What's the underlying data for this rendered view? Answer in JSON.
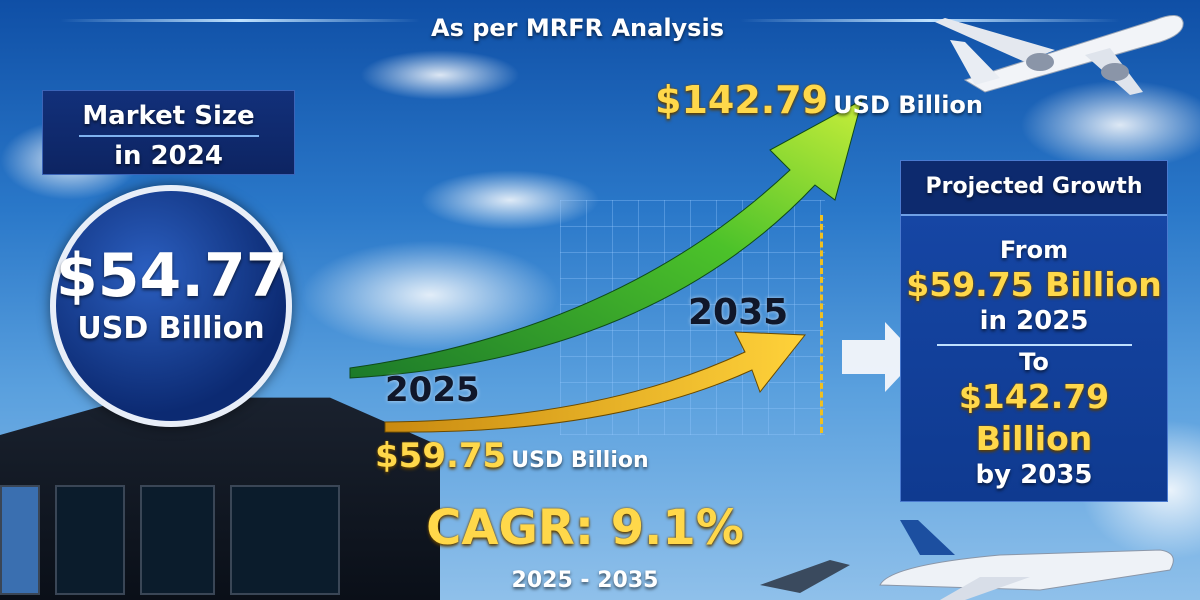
{
  "header": {
    "subtitle": "As per MRFR Analysis"
  },
  "market_size": {
    "label_line1": "Market Size",
    "label_line2": "in 2024",
    "value": "$54.77",
    "unit": "USD Billion"
  },
  "growth_chart": {
    "end_value": "$142.79",
    "end_unit": "USD Billion",
    "start_value": "$59.75",
    "start_unit": "USD Billion",
    "start_year": "2025",
    "end_year": "2035"
  },
  "projected_growth": {
    "title": "Projected Growth",
    "from_label": "From",
    "from_value": "$59.75 Billion",
    "from_year": "in 2025",
    "to_label": "To",
    "to_value": "$142.79 Billion",
    "to_year": "by 2035"
  },
  "cagr": {
    "label": "CAGR: 9.1%",
    "period": "2025 - 2035"
  },
  "colors": {
    "navy": "#0d2462",
    "gold": "#ffd84a",
    "green_arrow": "#4cc22a",
    "yellow_arrow": "#f4b81c"
  }
}
